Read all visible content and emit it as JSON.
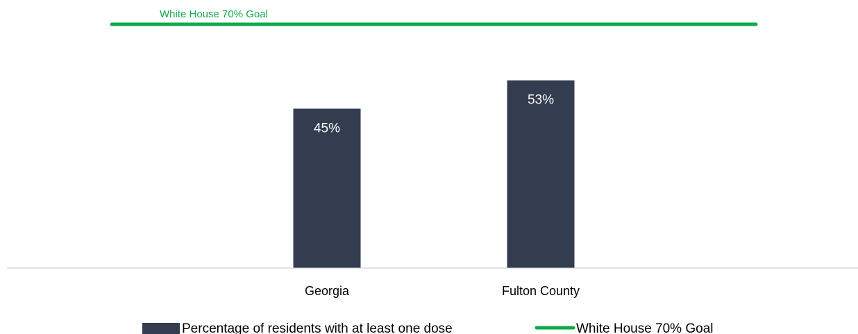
{
  "chart_data": {
    "type": "bar",
    "categories": [
      "Georgia",
      "Fulton County"
    ],
    "series": [
      {
        "name": "Percentage of residents with at least one dose",
        "values": [
          45,
          53
        ],
        "data_labels": [
          "45%",
          "53%"
        ],
        "color": "#343d4f"
      }
    ],
    "reference_line": {
      "name": "White House 70% Goal",
      "value": 70,
      "label": "White House 70% Goal",
      "color": "#12a84c"
    },
    "ylim": [
      0,
      100
    ],
    "grid": false,
    "legend": {
      "position": "bottom",
      "entries": [
        {
          "label": "Percentage of residents with at least one dose",
          "kind": "bar",
          "color": "#343d4f"
        },
        {
          "label": "White House 70% Goal",
          "kind": "line",
          "color": "#12a84c"
        }
      ]
    }
  }
}
